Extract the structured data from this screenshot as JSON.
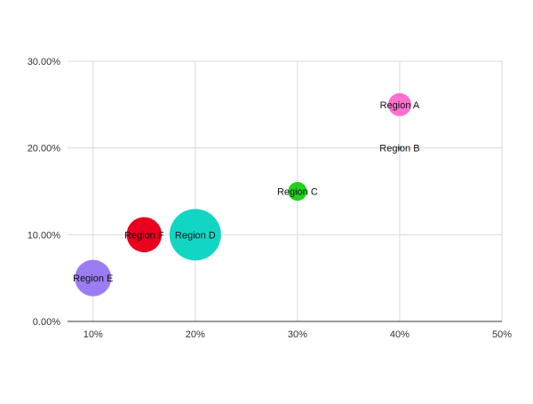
{
  "chart_data": {
    "type": "scatter",
    "subtype": "bubble",
    "title": "",
    "xlabel": "",
    "ylabel": "",
    "xlim": [
      0.075,
      0.5
    ],
    "ylim": [
      0,
      0.3
    ],
    "x_ticks": [
      {
        "value": 0.1,
        "label": "10%"
      },
      {
        "value": 0.2,
        "label": "20%"
      },
      {
        "value": 0.3,
        "label": "30%"
      },
      {
        "value": 0.4,
        "label": "40%"
      },
      {
        "value": 0.5,
        "label": "50%"
      }
    ],
    "y_ticks": [
      {
        "value": 0.0,
        "label": "0.00%"
      },
      {
        "value": 0.1,
        "label": "10.00%"
      },
      {
        "value": 0.2,
        "label": "20.00%"
      },
      {
        "value": 0.3,
        "label": "30.00%"
      }
    ],
    "grid": true,
    "legend": "none",
    "points": [
      {
        "label": "Region A",
        "x": 0.4,
        "y": 0.25,
        "size": 12,
        "color": "#ff6fcf"
      },
      {
        "label": "Region B",
        "x": 0.4,
        "y": 0.2,
        "size": 0.4,
        "color": "#5bb4e6"
      },
      {
        "label": "Region C",
        "x": 0.3,
        "y": 0.15,
        "size": 8,
        "color": "#1fd11f"
      },
      {
        "label": "Region D",
        "x": 0.2,
        "y": 0.1,
        "size": 60,
        "color": "#12d6c4"
      },
      {
        "label": "Region E",
        "x": 0.1,
        "y": 0.05,
        "size": 30,
        "color": "#9b7cf3"
      },
      {
        "label": "Region F",
        "x": 0.15,
        "y": 0.1,
        "size": 28,
        "color": "#e8001f"
      }
    ]
  }
}
